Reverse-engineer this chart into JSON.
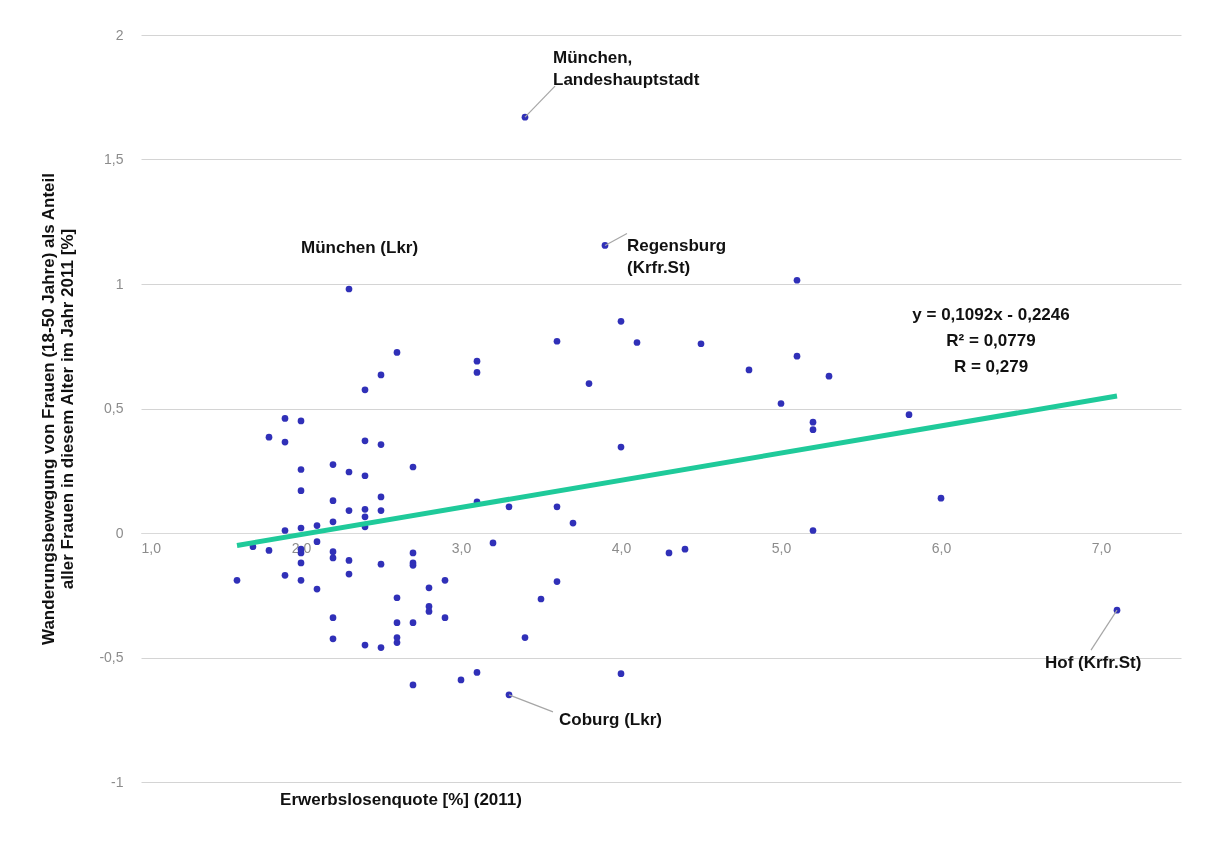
{
  "chart_data": {
    "type": "scatter",
    "xlabel": "Erwerbslosenquote [%] (2011)",
    "ylabel": "Wanderungsbewegung von Frauen (18-50 Jahre) als Anteil\naller Frauen in diesem Alter im Jahr 2011 [%]",
    "xlim": [
      1.0,
      7.5
    ],
    "ylim": [
      -1,
      2
    ],
    "xticks": [
      {
        "value": 1,
        "label": "1,0"
      },
      {
        "value": 2,
        "label": "2,0"
      },
      {
        "value": 3,
        "label": "3,0"
      },
      {
        "value": 4,
        "label": "4,0"
      },
      {
        "value": 5,
        "label": "5,0"
      },
      {
        "value": 6,
        "label": "6,0"
      },
      {
        "value": 7,
        "label": "7,0"
      }
    ],
    "yticks": [
      -1,
      {
        "value": -0.5,
        "label": "-0,5"
      },
      0,
      {
        "value": 0.5,
        "label": "0,5"
      },
      1,
      {
        "value": 1.5,
        "label": "1,5"
      },
      2
    ],
    "grid": "y",
    "legend": false,
    "marker": "circle",
    "series": [
      {
        "color": "#3030b8",
        "x": [
          1.6,
          1.7,
          1.8,
          1.8,
          1.9,
          1.9,
          1.9,
          1.9,
          2.0,
          2.0,
          2.0,
          2.0,
          2.0,
          2.0,
          2.0,
          2.0,
          2.1,
          2.1,
          2.1,
          2.2,
          2.2,
          2.2,
          2.2,
          2.2,
          2.2,
          2.2,
          2.3,
          2.3,
          2.3,
          2.3,
          2.3,
          2.4,
          2.4,
          2.4,
          2.4,
          2.4,
          2.4,
          2.4,
          2.5,
          2.5,
          2.5,
          2.5,
          2.5,
          2.5,
          2.6,
          2.6,
          2.6,
          2.6,
          2.6,
          2.7,
          2.7,
          2.7,
          2.7,
          2.7,
          2.7,
          2.8,
          2.8,
          2.8,
          2.9,
          2.9,
          3.0,
          3.1,
          3.1,
          3.1,
          3.1,
          3.2,
          3.3,
          3.3,
          3.4,
          3.4,
          3.5,
          3.6,
          3.6,
          3.6,
          3.7,
          3.8,
          3.9,
          4.0,
          4.0,
          4.0,
          4.1,
          4.3,
          4.4,
          4.5,
          4.8,
          5.0,
          5.1,
          5.1,
          5.2,
          5.2,
          5.2,
          5.3,
          5.8,
          6.0,
          7.1
        ],
        "values": [
          -0.19,
          -0.055,
          0.385,
          -0.07,
          0.46,
          0.365,
          0.01,
          -0.17,
          0.45,
          0.255,
          0.17,
          0.02,
          -0.065,
          -0.08,
          -0.12,
          -0.19,
          0.03,
          -0.035,
          -0.225,
          0.275,
          0.13,
          0.045,
          -0.075,
          -0.1,
          -0.34,
          -0.425,
          0.98,
          0.245,
          0.09,
          -0.11,
          -0.165,
          0.575,
          0.37,
          0.23,
          0.095,
          0.065,
          0.025,
          -0.45,
          0.635,
          0.355,
          0.145,
          0.09,
          -0.125,
          -0.46,
          0.725,
          -0.26,
          -0.36,
          -0.42,
          -0.44,
          0.265,
          -0.08,
          -0.12,
          -0.13,
          -0.36,
          -0.61,
          -0.22,
          -0.295,
          -0.315,
          -0.19,
          -0.34,
          -0.59,
          0.69,
          0.645,
          0.125,
          -0.56,
          -0.04,
          0.105,
          -0.65,
          1.67,
          -0.42,
          -0.265,
          0.77,
          0.105,
          -0.195,
          0.04,
          0.6,
          1.155,
          0.85,
          0.345,
          -0.565,
          0.765,
          -0.08,
          -0.065,
          0.76,
          0.655,
          0.52,
          1.015,
          0.71,
          0.445,
          0.415,
          0.01,
          0.63,
          0.475,
          0.14,
          -0.31
        ]
      },
      {
        "type": "line",
        "marker": "none",
        "color": "#1fca9a",
        "x": [
          1.6,
          7.1
        ],
        "values": [
          -0.05,
          0.55
        ]
      }
    ],
    "annotations": [
      {
        "text": "München,\nLandeshauptstadt",
        "x": 3.4,
        "y": 1.67
      },
      {
        "text": "Regensburg\n(Krfr.St)",
        "x": 3.9,
        "y": 1.155
      },
      {
        "text": "München (Lkr)",
        "x": 2.3,
        "y": 0.98
      },
      {
        "text": "Hof (Krfr.St)",
        "x": 7.1,
        "y": -0.31
      },
      {
        "text": "Coburg (Lkr)",
        "x": 3.3,
        "y": -0.65
      },
      "y = 0,1092x - 0,2246\nR² = 0,0779\nR = 0,279"
    ]
  }
}
